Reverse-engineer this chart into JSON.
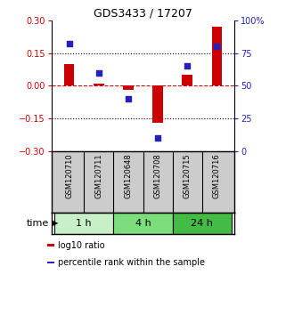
{
  "title": "GDS3433 / 17207",
  "samples": [
    "GSM120710",
    "GSM120711",
    "GSM120648",
    "GSM120708",
    "GSM120715",
    "GSM120716"
  ],
  "log10_ratio": [
    0.1,
    0.01,
    -0.02,
    -0.17,
    0.05,
    0.27
  ],
  "percentile_rank": [
    82,
    60,
    40,
    10,
    65,
    80
  ],
  "bar_color": "#cc0000",
  "dot_color": "#2222bb",
  "ylim_left": [
    -0.3,
    0.3
  ],
  "ylim_right": [
    0,
    100
  ],
  "yticks_left": [
    -0.3,
    -0.15,
    0,
    0.15,
    0.3
  ],
  "yticks_right": [
    0,
    25,
    50,
    75,
    100
  ],
  "hline_vals": [
    0.15,
    -0.15
  ],
  "time_groups": [
    {
      "label": "1 h",
      "start": 0,
      "end": 2,
      "color": "#c8f0c8"
    },
    {
      "label": "4 h",
      "start": 2,
      "end": 4,
      "color": "#7ddd7d"
    },
    {
      "label": "24 h",
      "start": 4,
      "end": 6,
      "color": "#44bb44"
    }
  ],
  "bar_width": 0.35,
  "dot_size": 18,
  "legend_items": [
    {
      "label": "log10 ratio",
      "color": "#cc0000"
    },
    {
      "label": "percentile rank within the sample",
      "color": "#2222bb"
    }
  ],
  "background_color": "#ffffff",
  "sample_bg": "#cccccc",
  "time_label": "time",
  "title_fontsize": 9,
  "tick_fontsize": 7,
  "label_fontsize": 6,
  "time_fontsize": 8,
  "legend_fontsize": 7
}
